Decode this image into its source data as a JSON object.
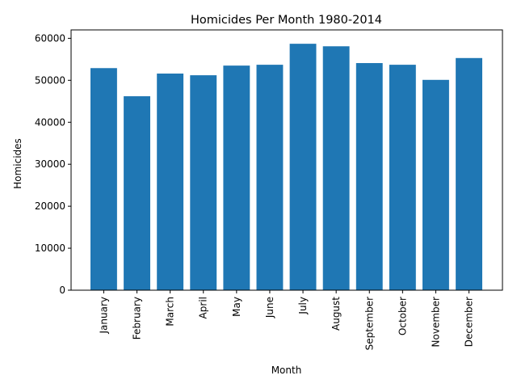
{
  "chart_data": {
    "type": "bar",
    "title": "Homicides Per Month 1980-2014",
    "xlabel": "Month",
    "ylabel": "Homicides",
    "categories": [
      "January",
      "February",
      "March",
      "April",
      "May",
      "June",
      "July",
      "August",
      "September",
      "October",
      "November",
      "December"
    ],
    "values": [
      52900,
      46200,
      51600,
      51200,
      53500,
      53700,
      58700,
      58100,
      54100,
      53700,
      50100,
      55300
    ],
    "ylim": [
      0,
      62000
    ],
    "yticks": [
      0,
      10000,
      20000,
      30000,
      40000,
      50000,
      60000
    ],
    "bar_color": "#1f77b4",
    "grid": false
  }
}
